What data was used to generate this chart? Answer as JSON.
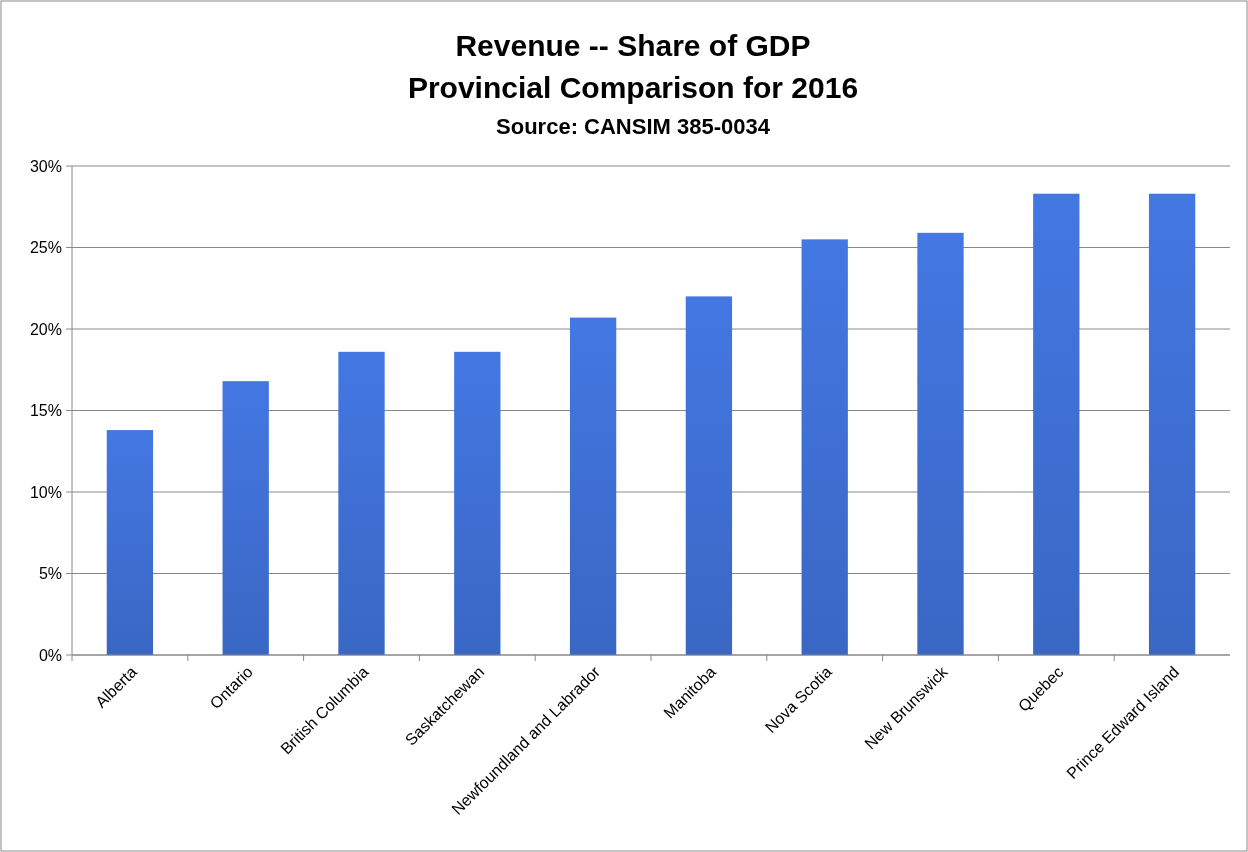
{
  "chart_data": {
    "type": "bar",
    "title": "Revenue -- Share of GDP",
    "subtitle": "Provincial Comparison for 2016",
    "annotations": [
      "Source: CANSIM 385-0034"
    ],
    "categories": [
      "Alberta",
      "Ontario",
      "British Columbia",
      "Saskatchewan",
      "Newfoundland and Labrador",
      "Manitoba",
      "Nova Scotia",
      "New Brunswick",
      "Quebec",
      "Prince Edward Island"
    ],
    "values": [
      13.8,
      16.8,
      18.6,
      18.6,
      20.7,
      22.0,
      25.5,
      25.9,
      28.3,
      28.3
    ],
    "color": "#3a67c4",
    "ylim": [
      0,
      30
    ],
    "yticks": [
      {
        "value": 0,
        "label": "0%"
      },
      {
        "value": 5,
        "label": "5%"
      },
      {
        "value": 10,
        "label": "10%"
      },
      {
        "value": 15,
        "label": "15%"
      },
      {
        "value": 20,
        "label": "20%"
      },
      {
        "value": 25,
        "label": "25%"
      },
      {
        "value": 30,
        "label": "30%"
      }
    ],
    "grid": "y"
  }
}
